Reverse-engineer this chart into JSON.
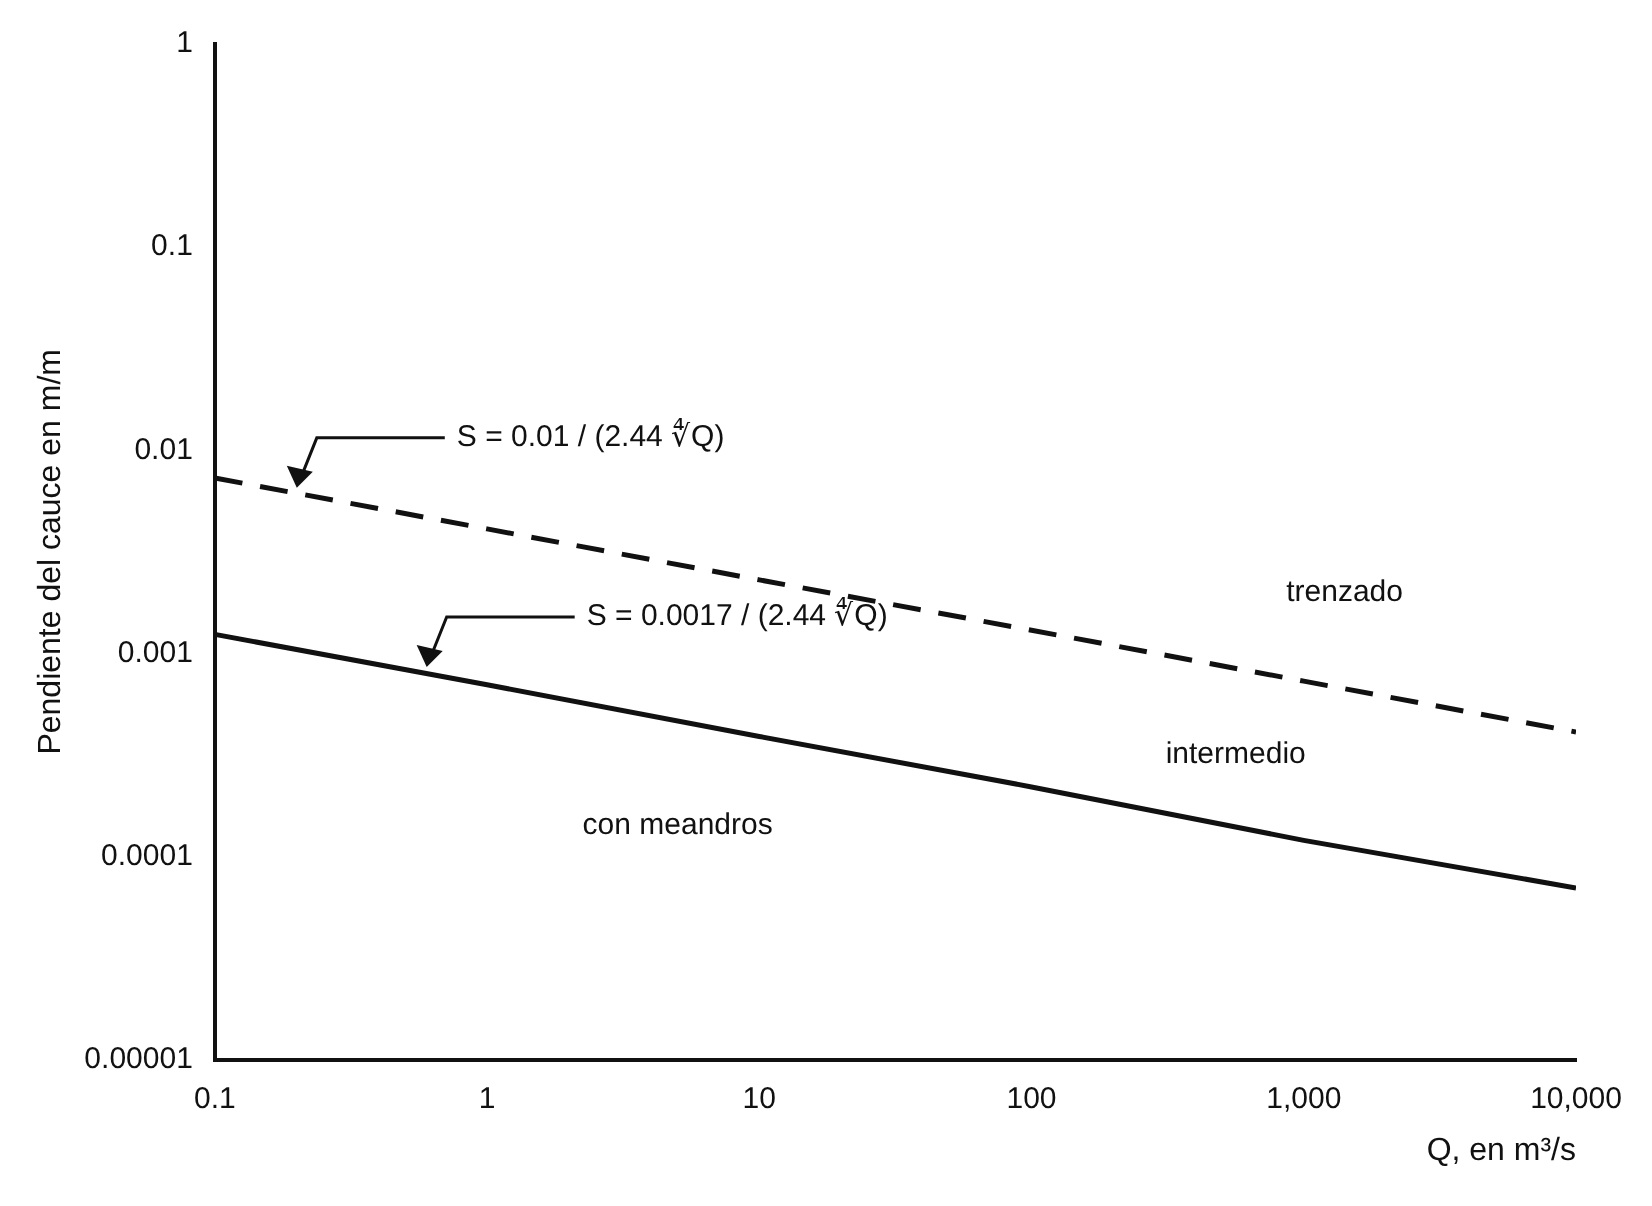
{
  "chart_data": {
    "type": "line",
    "xlabel": "Q, en m³/s",
    "ylabel": "Pendiente del cauce en m/m",
    "x": [
      0.1,
      1,
      10,
      100,
      1000,
      10000
    ],
    "series": [
      {
        "color": "#111111",
        "line_style": "dashed",
        "values": [
          0.0073,
          0.0041,
          0.0023,
          0.0013,
          0.00073,
          0.00041
        ]
      },
      {
        "color": "#111111",
        "line_style": "solid",
        "values": [
          0.00124,
          0.0007,
          0.00039,
          0.00022,
          0.00012,
          7e-05
        ]
      }
    ],
    "log": "xy",
    "xlim": [
      0.1,
      10000
    ],
    "ylim": [
      1e-05,
      1
    ],
    "xticks": [
      0.1,
      1,
      10,
      100,
      {
        "value": 1000,
        "label": "1,000"
      },
      {
        "value": 10000,
        "label": "10,000"
      }
    ],
    "yticks": [
      {
        "value": 1e-05,
        "label": "0.00001"
      },
      0.0001,
      0.001,
      0.01,
      0.1,
      1
    ],
    "grid": false,
    "legend": false,
    "marker": "none",
    "annotations": [
      {
        "text": "S = 0.01 / (2.44 ∜Q)",
        "x": 0.2,
        "y": 0.0061
      },
      {
        "text": "S = 0.0017 / (2.44 ∜Q)",
        "x": 0.6,
        "y": 0.0008
      },
      "trenzado",
      "intermedio",
      "con meandros"
    ]
  }
}
